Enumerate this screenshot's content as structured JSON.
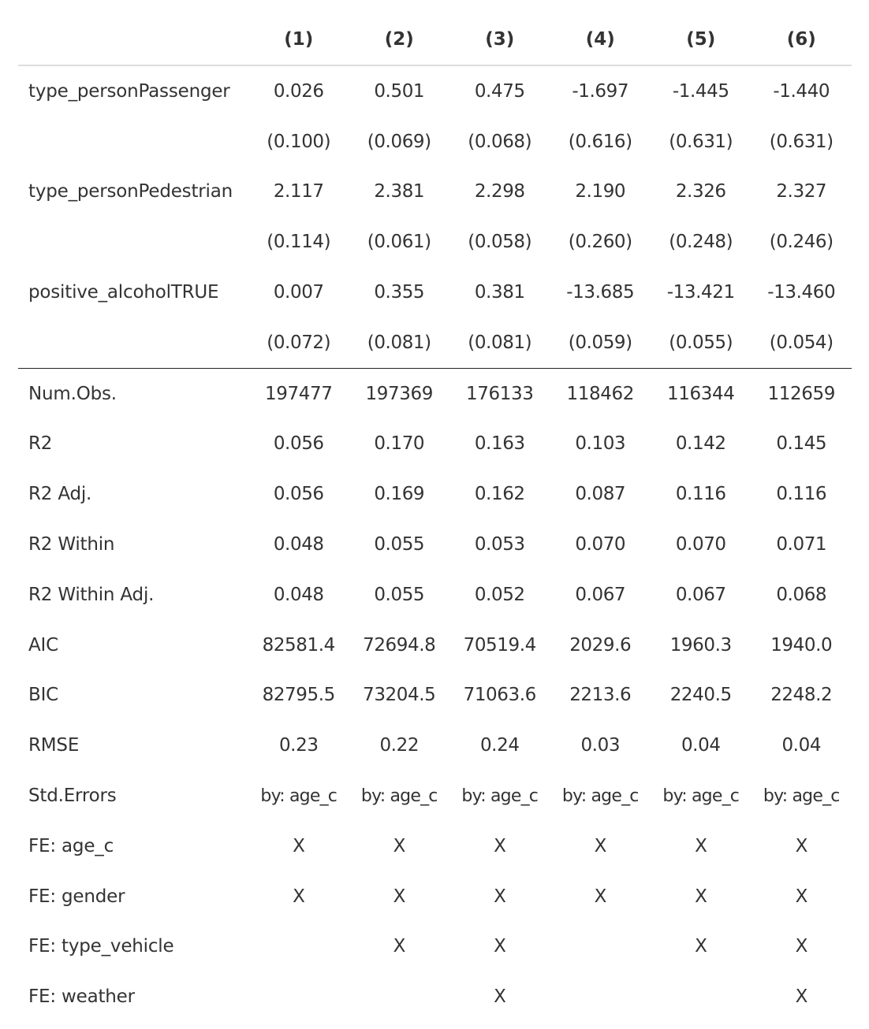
{
  "table": {
    "headers": [
      "",
      "(1)",
      "(2)",
      "(3)",
      "(4)",
      "(5)",
      "(6)"
    ],
    "coef_rows": [
      {
        "label": "type_personPassenger",
        "values": [
          "0.026",
          "0.501",
          "0.475",
          "-1.697",
          "-1.445",
          "-1.440"
        ]
      },
      {
        "label": "",
        "values": [
          "(0.100)",
          "(0.069)",
          "(0.068)",
          "(0.616)",
          "(0.631)",
          "(0.631)"
        ]
      },
      {
        "label": "type_personPedestrian",
        "values": [
          "2.117",
          "2.381",
          "2.298",
          "2.190",
          "2.326",
          "2.327"
        ]
      },
      {
        "label": "",
        "values": [
          "(0.114)",
          "(0.061)",
          "(0.058)",
          "(0.260)",
          "(0.248)",
          "(0.246)"
        ]
      },
      {
        "label": "positive_alcoholTRUE",
        "values": [
          "0.007",
          "0.355",
          "0.381",
          "-13.685",
          "-13.421",
          "-13.460"
        ]
      },
      {
        "label": "",
        "values": [
          "(0.072)",
          "(0.081)",
          "(0.081)",
          "(0.059)",
          "(0.055)",
          "(0.054)"
        ]
      }
    ],
    "gof_rows": [
      {
        "label": "Num.Obs.",
        "values": [
          "197477",
          "197369",
          "176133",
          "118462",
          "116344",
          "112659"
        ]
      },
      {
        "label": "R2",
        "values": [
          "0.056",
          "0.170",
          "0.163",
          "0.103",
          "0.142",
          "0.145"
        ]
      },
      {
        "label": "R2 Adj.",
        "values": [
          "0.056",
          "0.169",
          "0.162",
          "0.087",
          "0.116",
          "0.116"
        ]
      },
      {
        "label": "R2 Within",
        "values": [
          "0.048",
          "0.055",
          "0.053",
          "0.070",
          "0.070",
          "0.071"
        ]
      },
      {
        "label": "R2 Within Adj.",
        "values": [
          "0.048",
          "0.055",
          "0.052",
          "0.067",
          "0.067",
          "0.068"
        ]
      },
      {
        "label": "AIC",
        "values": [
          "82581.4",
          "72694.8",
          "70519.4",
          "2029.6",
          "1960.3",
          "1940.0"
        ]
      },
      {
        "label": "BIC",
        "values": [
          "82795.5",
          "73204.5",
          "71063.6",
          "2213.6",
          "2240.5",
          "2248.2"
        ]
      },
      {
        "label": "RMSE",
        "values": [
          "0.23",
          "0.22",
          "0.24",
          "0.03",
          "0.04",
          "0.04"
        ]
      },
      {
        "label": "Std.Errors",
        "values": [
          "by: age_c",
          "by: age_c",
          "by: age_c",
          "by: age_c",
          "by: age_c",
          "by: age_c"
        ]
      },
      {
        "label": "FE: age_c",
        "values": [
          "X",
          "X",
          "X",
          "X",
          "X",
          "X"
        ]
      },
      {
        "label": "FE: gender",
        "values": [
          "X",
          "X",
          "X",
          "X",
          "X",
          "X"
        ]
      },
      {
        "label": "FE: type_vehicle",
        "values": [
          "",
          "X",
          "X",
          "",
          "X",
          "X"
        ]
      },
      {
        "label": "FE: weather",
        "values": [
          "",
          "",
          "X",
          "",
          "",
          "X"
        ]
      }
    ]
  }
}
